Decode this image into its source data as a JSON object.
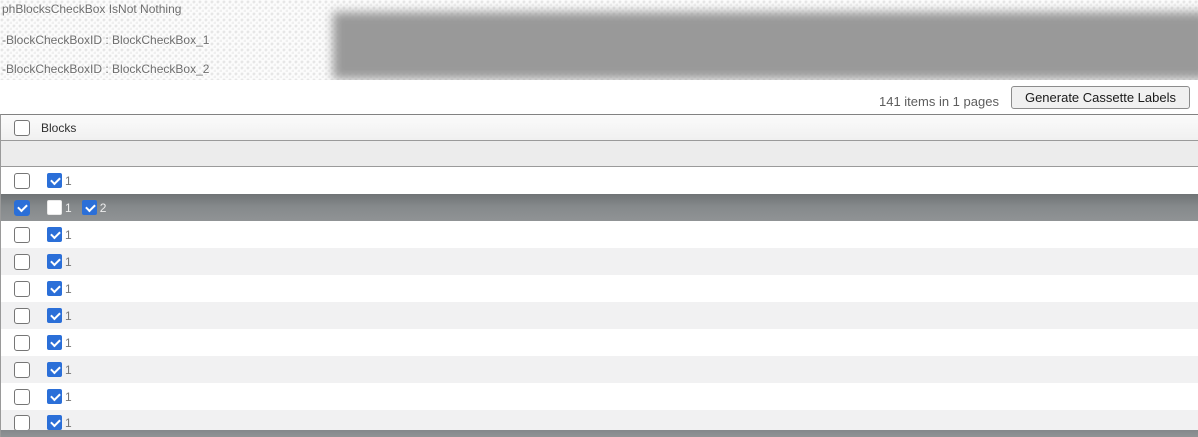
{
  "debug_panel": {
    "lines": [
      "phBlocksCheckBox IsNot Nothing",
      "-BlockCheckBoxID : BlockCheckBox_1",
      "-BlockCheckBoxID : BlockCheckBox_2"
    ]
  },
  "toolbar": {
    "items_summary": "141 items in 1 pages",
    "generate_button_label": "Generate Cassette Labels"
  },
  "grid": {
    "header": {
      "column_label": "Blocks",
      "select_all_checked": false
    },
    "rows": [
      {
        "selected": false,
        "row_checked": false,
        "blocks": [
          {
            "label": "1",
            "checked": true
          }
        ]
      },
      {
        "selected": true,
        "row_checked": true,
        "blocks": [
          {
            "label": "1",
            "checked": false
          },
          {
            "label": "2",
            "checked": true
          }
        ]
      },
      {
        "selected": false,
        "row_checked": false,
        "blocks": [
          {
            "label": "1",
            "checked": true
          }
        ]
      },
      {
        "selected": false,
        "row_checked": false,
        "blocks": [
          {
            "label": "1",
            "checked": true
          }
        ]
      },
      {
        "selected": false,
        "row_checked": false,
        "blocks": [
          {
            "label": "1",
            "checked": true
          }
        ]
      },
      {
        "selected": false,
        "row_checked": false,
        "blocks": [
          {
            "label": "1",
            "checked": true
          }
        ]
      },
      {
        "selected": false,
        "row_checked": false,
        "blocks": [
          {
            "label": "1",
            "checked": true
          }
        ]
      },
      {
        "selected": false,
        "row_checked": false,
        "blocks": [
          {
            "label": "1",
            "checked": true
          }
        ]
      },
      {
        "selected": false,
        "row_checked": false,
        "blocks": [
          {
            "label": "1",
            "checked": true
          }
        ]
      },
      {
        "selected": false,
        "row_checked": false,
        "partial": true,
        "blocks": [
          {
            "label": "1",
            "checked": true
          }
        ]
      },
      {
        "selected": true,
        "row_checked": false,
        "sliver": true,
        "blocks": []
      }
    ]
  },
  "colors": {
    "checkbox_checked": "#2b6fd8",
    "selected_row_top": "#6f7375",
    "selected_row_bottom": "#909395",
    "alt_row": "#f1f1f2",
    "blob_gray": "#999999"
  }
}
